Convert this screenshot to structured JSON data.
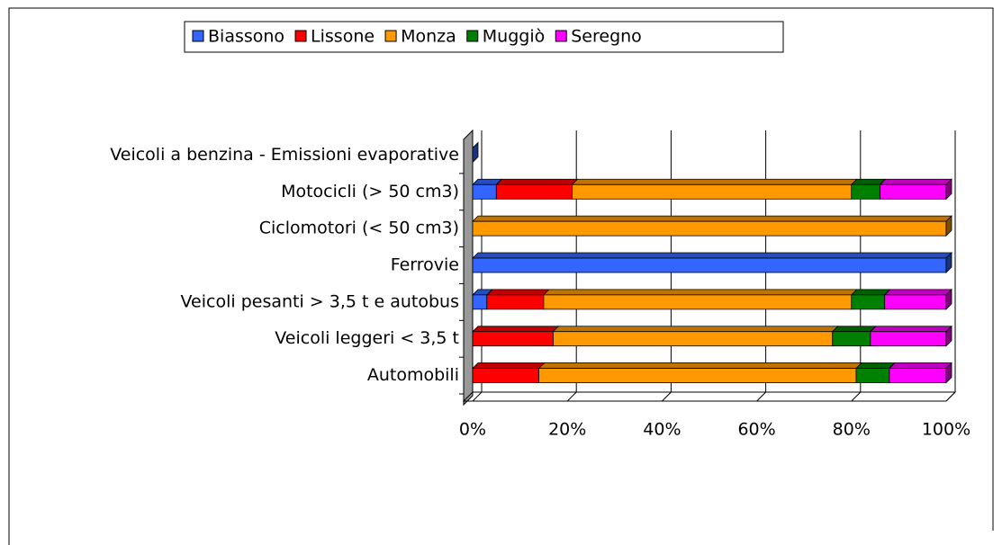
{
  "chart_data": {
    "type": "stacked-bar-100",
    "categories": [
      "Veicoli a benzina - Emissioni evaporative",
      "Motocicli (> 50 cm3)",
      "Ciclomotori (< 50 cm3)",
      "Ferrovie",
      "Veicoli pesanti > 3,5 t e autobus",
      "Veicoli leggeri < 3,5 t",
      "Automobili"
    ],
    "series": [
      {
        "name": "Biassono",
        "color": "#3366ff",
        "values": [
          0,
          5,
          0,
          100,
          3,
          0,
          0
        ]
      },
      {
        "name": "Lissone",
        "color": "#ff0000",
        "values": [
          0,
          16,
          0,
          0,
          12,
          17,
          14
        ]
      },
      {
        "name": "Monza",
        "color": "#ff9900",
        "values": [
          0,
          59,
          100,
          0,
          65,
          59,
          67
        ]
      },
      {
        "name": "Muggiò",
        "color": "#008000",
        "values": [
          0,
          6,
          0,
          0,
          7,
          8,
          7
        ]
      },
      {
        "name": "Seregno",
        "color": "#ff00ff",
        "values": [
          0,
          14,
          0,
          0,
          13,
          16,
          12
        ]
      }
    ],
    "xlim": [
      0,
      100
    ],
    "xticks": [
      {
        "value": 0,
        "label": "0%"
      },
      {
        "value": 20,
        "label": "20%"
      },
      {
        "value": 40,
        "label": "40%"
      },
      {
        "value": 60,
        "label": "60%"
      },
      {
        "value": 80,
        "label": "80%"
      },
      {
        "value": 100,
        "label": "100%"
      }
    ],
    "grid": true,
    "legend": "top"
  }
}
